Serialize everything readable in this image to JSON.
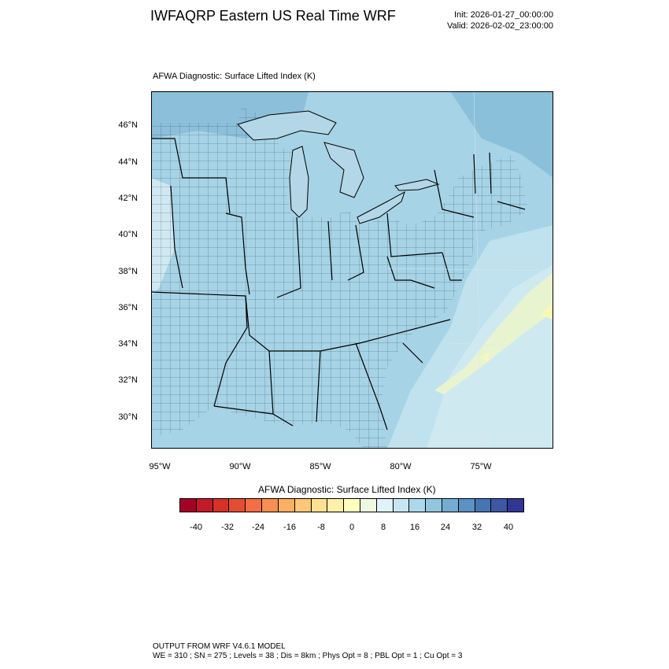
{
  "header": {
    "title": "IWFAQRP Eastern US Real Time WRF",
    "init": "Init: 2026-01-27_00:00:00",
    "valid": "Valid: 2026-02-02_23:00:00"
  },
  "plot": {
    "field_label": "AFWA Diagnostic: Surface Lifted Index   (K)",
    "lat_labels": [
      "46°N",
      "44°N",
      "42°N",
      "40°N",
      "38°N",
      "36°N",
      "34°N",
      "32°N",
      "30°N"
    ],
    "lon_labels": [
      "95°W",
      "90°W",
      "85°W",
      "80°W",
      "75°W"
    ]
  },
  "colorbar": {
    "title": "AFWA Diagnostic: Surface Lifted Index  (K)",
    "tick_labels": [
      "-40",
      "-32",
      "-24",
      "-16",
      "-8",
      "0",
      "8",
      "16",
      "24",
      "32",
      "40"
    ],
    "colors": [
      "#a50026",
      "#c11b29",
      "#d73027",
      "#e54d33",
      "#f46d43",
      "#f88e52",
      "#fdae61",
      "#fdc678",
      "#fee090",
      "#fff0a8",
      "#ffffbf",
      "#eef8e0",
      "#e0f3f8",
      "#c6e7f1",
      "#abd9e9",
      "#92c5de",
      "#74add1",
      "#5b91c4",
      "#4575b4",
      "#3f56a5",
      "#313695"
    ]
  },
  "footer": {
    "line1": "OUTPUT FROM WRF V4.6.1 MODEL",
    "line2": "WE = 310 ; SN = 275 ; Levels = 38 ; Dis = 8km ; Phys Opt = 8 ; PBL Opt = 1 ; Cu Opt = 3"
  }
}
